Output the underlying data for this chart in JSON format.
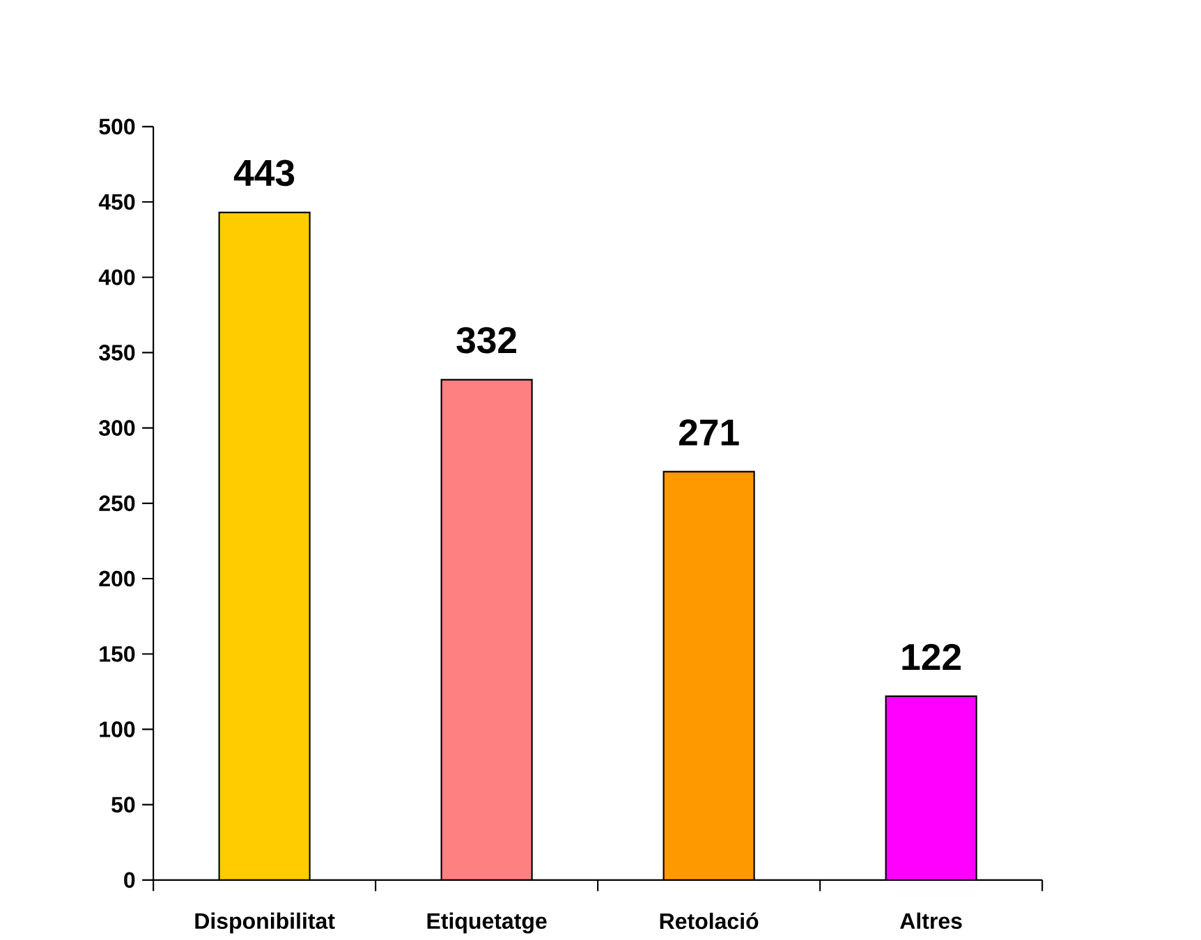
{
  "chart_data": {
    "type": "bar",
    "categories": [
      "Disponibilitat",
      "Etiquetatge",
      "Retolació",
      "Altres"
    ],
    "values": [
      443,
      332,
      271,
      122
    ],
    "colors": [
      "#ffcc00",
      "#ff8080",
      "#ff9900",
      "#ff00ff"
    ],
    "ylim": [
      0,
      500
    ],
    "yticks": [
      0,
      50,
      100,
      150,
      200,
      250,
      300,
      350,
      400,
      450,
      500
    ],
    "data_labels": true
  }
}
